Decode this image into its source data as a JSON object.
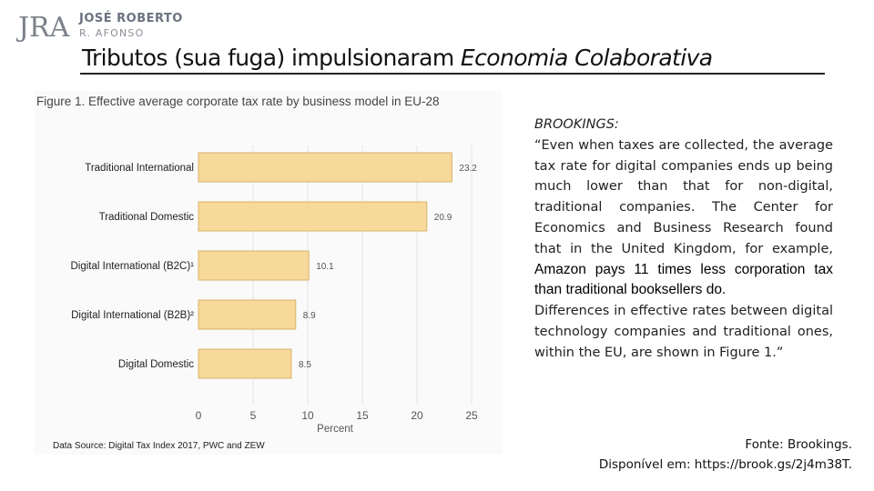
{
  "brand": {
    "monogram": "JRA",
    "name": "JOSÉ ROBERTO",
    "sub": "R. AFONSO"
  },
  "title": {
    "main": "Tributos (sua fuga) impulsionaram ",
    "italic": "Economia Colaborativa"
  },
  "figure": {
    "title": "Figure 1. Effective average corporate tax rate by business model in EU-28",
    "source": "Data Source: Digital Tax Index 2017, PWC and ZEW"
  },
  "chart_data": {
    "type": "bar",
    "orientation": "horizontal",
    "categories": [
      "Traditional International",
      "Traditional Domestic",
      "Digital International (B2C)¹",
      "Digital International (B2B)²",
      "Digital Domestic"
    ],
    "values": [
      23.2,
      20.9,
      10.1,
      8.9,
      8.5
    ],
    "value_labels": [
      "23.2",
      "20.9",
      "10.1",
      "8.9",
      "8.5"
    ],
    "xlabel": "Percent",
    "xlim": [
      0,
      25
    ],
    "xticks": [
      "0",
      "5",
      "10",
      "15",
      "20",
      "25"
    ],
    "grid": true,
    "bar_color": "#f6d99b",
    "bar_stroke": "#d8b46a"
  },
  "quote": {
    "source_label": "BROOKINGS:",
    "part1": "“Even when taxes are collected, the average tax rate for digital companies ends up being much lower than that for non-digital, traditional companies. The Center for Economics and Business Research found that in the United Kingdom, for example, ",
    "highlight": "Amazon pays 11 times less corporation tax than traditional booksellers do.",
    "part2": "Differences in effective rates between digital technology companies and traditional ones, within the EU, are shown in Figure 1.”"
  },
  "footer": {
    "line1": "Fonte: Brookings.",
    "line2": "Disponível em: https://brook.gs/2j4m38T."
  }
}
